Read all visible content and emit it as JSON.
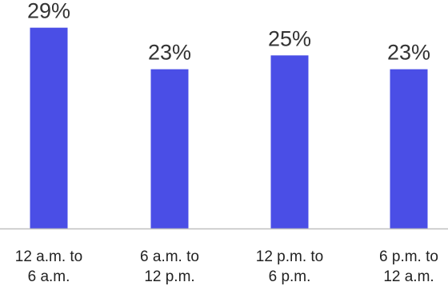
{
  "chart_data": {
    "type": "bar",
    "categories": [
      [
        "12 a.m. to",
        "6 a.m."
      ],
      [
        "6 a.m. to",
        "12 p.m."
      ],
      [
        "12 p.m. to",
        "6 p.m."
      ],
      [
        "6 p.m. to",
        "12 a.m."
      ]
    ],
    "values": [
      29,
      23,
      25,
      23
    ],
    "data_labels": [
      "29%",
      "23%",
      "25%",
      "23%"
    ],
    "title": "",
    "xlabel": "",
    "ylabel": "",
    "ylim": [
      0,
      30
    ],
    "grid": false,
    "legend": "none",
    "colors": {
      "bar": "#4a4ee6",
      "axis": "#bfbfbf",
      "text": "#333333"
    }
  }
}
